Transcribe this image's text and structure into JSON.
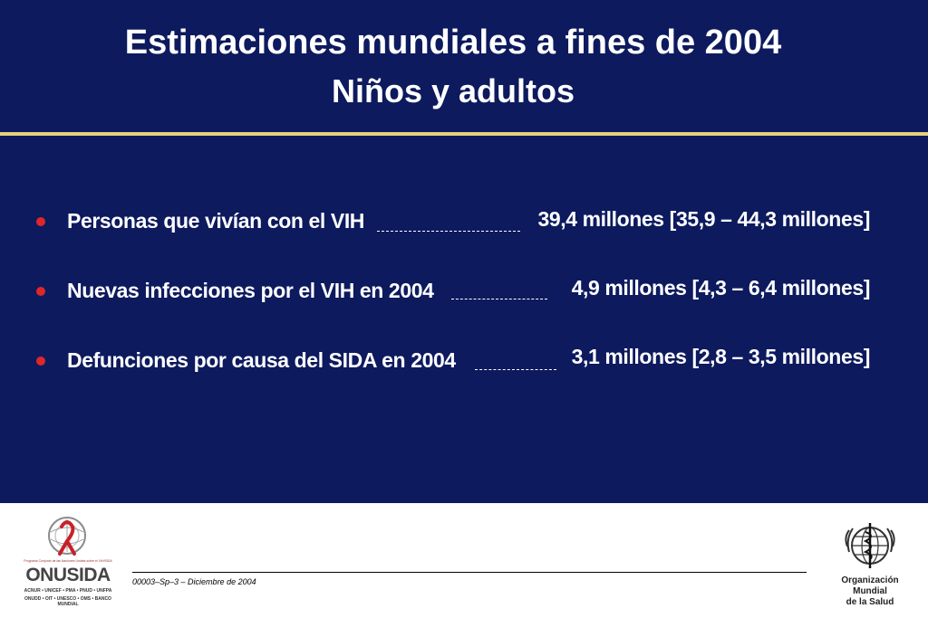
{
  "slide": {
    "title_line1": "Estimaciones mundiales a fines de 2004",
    "title_line2": "Niños y adultos",
    "background_color": "#0d1a5e",
    "accent_line_color": "#e8cf7a",
    "bullet_color": "#e0262b",
    "items": [
      {
        "label": "Personas que vivían con el VIH",
        "value": "39,4 millones [35,9 – 44,3 millones]"
      },
      {
        "label": "Nuevas infecciones por el VIH en 2004",
        "value": "4,9 millones [4,3 – 6,4 millones]"
      },
      {
        "label": "Defunciones por causa del SIDA en 2004",
        "value": "3,1 millones [2,8 – 3,5 millones]"
      }
    ]
  },
  "footer": {
    "code": "00003–Sp–3 – Diciembre de 2004",
    "onusida": {
      "tagline": "Programa Conjunto de las Naciones Unidas sobre el VIH/SIDA",
      "brand": "ONUSIDA",
      "sponsors_line1": "ACNUR • UNICEF • PMA • PNUD • UNFPA",
      "sponsors_line2": "ONUDD • OIT • UNESCO • OMS • BANCO MUNDIAL"
    },
    "oms": {
      "name_line1": "Organización",
      "name_line2": "Mundial",
      "name_line3": "de la Salud"
    }
  }
}
